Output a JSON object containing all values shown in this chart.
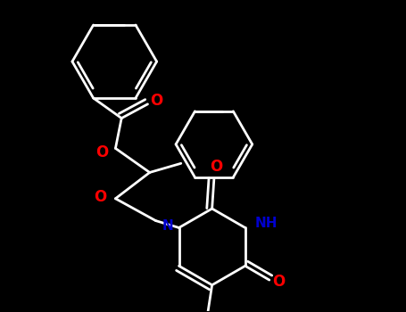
{
  "bg_color": "#000000",
  "bond_color": "#ffffff",
  "oxygen_color": "#ff0000",
  "nitrogen_color": "#0000cd",
  "line_width": 2.0,
  "figsize": [
    4.55,
    3.5
  ],
  "dpi": 100,
  "xlim": [
    0,
    10
  ],
  "ylim": [
    0,
    7.7
  ]
}
